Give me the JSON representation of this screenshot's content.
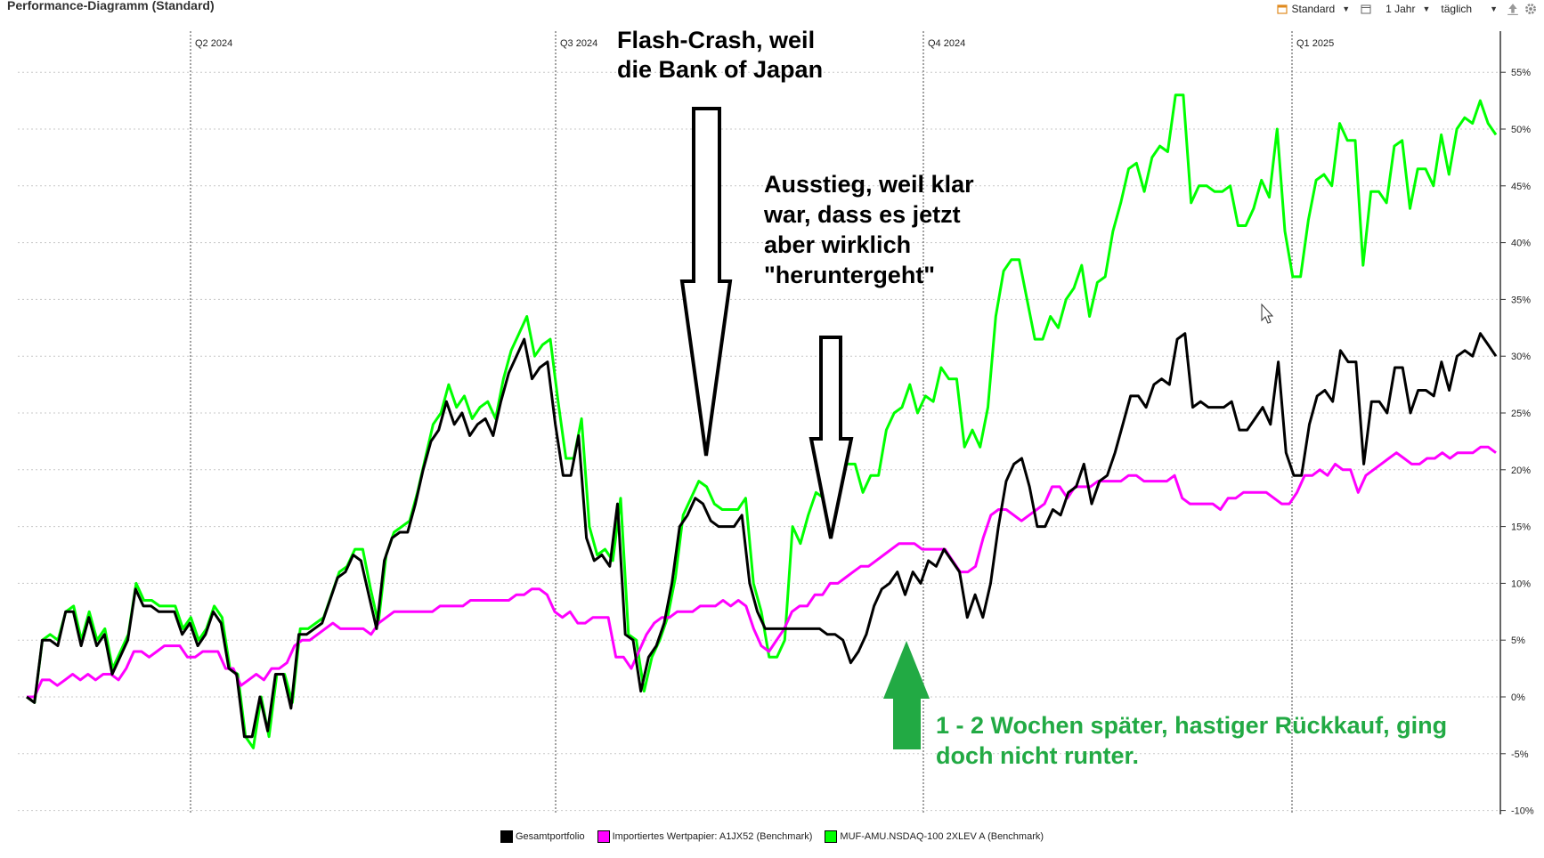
{
  "title": "Performance-Diagramm (Standard)",
  "toolbar": {
    "view_label": "Standard",
    "period_label": "1 Jahr",
    "interval_label": "täglich",
    "calendar_icon": "calendar-icon",
    "export_icon": "upload-icon",
    "settings_icon": "gear-icon"
  },
  "colors": {
    "portfolio": "#000000",
    "benchmark_import": "#ff00ff",
    "benchmark_nasdaq": "#00ff00",
    "annotation_green": "#22aa44",
    "grid": "#c8c8c8"
  },
  "annotations": {
    "flash_crash_line1": "Flash-Crash, weil",
    "flash_crash_line2": "die Bank of Japan",
    "exit_line1": "Ausstieg, weil klar",
    "exit_line2": "war, dass es jetzt",
    "exit_line3": "aber wirklich",
    "exit_line4": "\"heruntergeht\"",
    "rebuy_line1": "1 - 2 Wochen später, hastiger Rückkauf, ging",
    "rebuy_line2": "doch nicht runter."
  },
  "chart_data": {
    "type": "line",
    "quarter_labels": [
      "Q2 2024",
      "Q3 2024",
      "Q4 2024",
      "Q1 2025"
    ],
    "y_ticks": [
      "55%",
      "50%",
      "45%",
      "40%",
      "35%",
      "30%",
      "25%",
      "20%",
      "15%",
      "10%",
      "5%",
      "0%",
      "-5%",
      "-10%"
    ],
    "ylim": [
      -10,
      57
    ],
    "legend_position": "bottom",
    "grid": true,
    "series": [
      {
        "name": "Gesamtportfolio",
        "values": [
          0,
          -0.5,
          5,
          5,
          4.5,
          7.5,
          7.5,
          4.5,
          7,
          4.5,
          5.5,
          2,
          3.5,
          5,
          9.5,
          8,
          8,
          7.5,
          7.5,
          7.5,
          5.5,
          6.5,
          4.5,
          5.5,
          7.5,
          6.5,
          2.5,
          2,
          -3.5,
          -3.5,
          0,
          -3,
          2,
          2,
          -1,
          5.5,
          5.5,
          6,
          6.5,
          8.5,
          10.5,
          11,
          12.5,
          12,
          9,
          6,
          12,
          14,
          14.5,
          14.5,
          17,
          20,
          22.5,
          23.5,
          26,
          24,
          25,
          23,
          24,
          24.5,
          23,
          26,
          28.5,
          30,
          31.5,
          28,
          29,
          29.5,
          24,
          19.5,
          19.5,
          23,
          14,
          12,
          12.5,
          11.5,
          17,
          5.5,
          5,
          0.5,
          3.5,
          4.5,
          6.5,
          10,
          15,
          16,
          17.5,
          17,
          15.5,
          15,
          15,
          15,
          16,
          10,
          7.5,
          6,
          6,
          6,
          6,
          6,
          6,
          6,
          6,
          5.5,
          5.5,
          5,
          3,
          4,
          5.5,
          8,
          9.5,
          10,
          11,
          9,
          11,
          10,
          12,
          11.5,
          13,
          12,
          11,
          7,
          9,
          7,
          10,
          15,
          19,
          20.5,
          21,
          18.5,
          15,
          15,
          16.5,
          16,
          18,
          18.5,
          20.5,
          17,
          19,
          19.5,
          21.5,
          24,
          26.5,
          26.5,
          25.5,
          27.5,
          28,
          27.5,
          31.5,
          32,
          25.5,
          26,
          25.5,
          25.5,
          25.5,
          26,
          23.5,
          23.5,
          24.5,
          25.5,
          24,
          29.5,
          21.5,
          19.5,
          19.5,
          24,
          26.5,
          27,
          26,
          30.5,
          29.5,
          29.5,
          20.5,
          26,
          26,
          25,
          29,
          29,
          25,
          27,
          27,
          26.5,
          29.5,
          27,
          30,
          30.5,
          30,
          32,
          31,
          30
        ]
      },
      {
        "name": "Importiertes Wertpapier: A1JX52 (Benchmark)",
        "values": [
          0,
          0,
          1.5,
          1.5,
          1,
          1.5,
          2,
          1.5,
          2,
          1.5,
          2,
          2,
          1.5,
          2.5,
          4,
          4,
          3.5,
          4,
          4.5,
          4.5,
          4.5,
          3.5,
          3.5,
          4,
          4,
          4,
          2.5,
          2.5,
          1,
          1.5,
          2,
          1.5,
          2.5,
          2.5,
          3,
          4.5,
          5,
          5,
          5.5,
          6,
          6.5,
          6,
          6,
          6,
          6,
          5.5,
          6.5,
          7,
          7.5,
          7.5,
          7.5,
          7.5,
          7.5,
          7.5,
          8,
          8,
          8,
          8,
          8.5,
          8.5,
          8.5,
          8.5,
          8.5,
          8.5,
          9,
          9,
          9.5,
          9.5,
          9,
          7.5,
          7,
          7.5,
          6.5,
          6.5,
          7,
          7,
          7,
          3.5,
          3.5,
          2.5,
          4,
          5.5,
          6.5,
          7,
          7,
          7.5,
          7.5,
          7.5,
          8,
          8,
          8,
          8.5,
          8,
          8.5,
          8,
          6,
          4.5,
          4,
          5,
          6,
          7.5,
          8,
          8,
          9,
          9,
          10,
          10,
          10.5,
          11,
          11.5,
          11.5,
          12,
          12.5,
          13,
          13.5,
          13.5,
          13.5,
          13,
          13,
          13,
          13,
          12,
          11,
          11,
          11.5,
          14,
          16,
          16.5,
          16.5,
          16,
          15.5,
          16,
          16.5,
          17,
          18.5,
          18.5,
          17.5,
          18.5,
          18.5,
          18.5,
          19,
          19,
          19,
          19,
          19.5,
          19.5,
          19,
          19,
          19,
          19,
          19.5,
          17.5,
          17,
          17,
          17,
          17,
          16.5,
          17.5,
          17.5,
          18,
          18,
          18,
          18,
          17.5,
          17,
          17,
          18,
          19.5,
          19.5,
          20,
          19.5,
          20.5,
          20,
          20,
          18,
          19.5,
          20,
          20.5,
          21,
          21.5,
          21,
          20.5,
          20.5,
          21,
          21,
          21.5,
          21,
          21.5,
          21.5,
          21.5,
          22,
          22,
          21.5
        ]
      },
      {
        "name": "MUF-AMU.NSDAQ-100 2XLEV A (Benchmark)",
        "values": [
          0,
          -0.5,
          5,
          5.5,
          5,
          7.5,
          8,
          5,
          7.5,
          5,
          6,
          2.5,
          4,
          5.5,
          10,
          8.5,
          8.5,
          8,
          8,
          8,
          6,
          7,
          5,
          6,
          8,
          7,
          2.5,
          2,
          -3.5,
          -4.5,
          0,
          -3.5,
          2,
          2,
          -0.5,
          6,
          6,
          6.5,
          7,
          9,
          11,
          11.5,
          13,
          13,
          9.5,
          6.5,
          12.5,
          14.5,
          15,
          15.5,
          18,
          21,
          24,
          25,
          27.5,
          25.5,
          26.5,
          24.5,
          25.5,
          26,
          24.5,
          28,
          30.5,
          32,
          33.5,
          30,
          31,
          31.5,
          26,
          21,
          21,
          24.5,
          15,
          12.5,
          13,
          12,
          17.5,
          5.5,
          5,
          0.5,
          3.5,
          5,
          7,
          10.5,
          16,
          17.5,
          19,
          18.5,
          17,
          16.5,
          16.5,
          16.5,
          17.5,
          10,
          7.5,
          3.5,
          3.5,
          5,
          15,
          13.5,
          16,
          18,
          17.5,
          19.5,
          20,
          20.5,
          20.5,
          18,
          19.5,
          19.5,
          23.5,
          25,
          25.5,
          27.5,
          25,
          26.5,
          26,
          29,
          28,
          28,
          22,
          23.5,
          22,
          25.5,
          33.5,
          37.5,
          38.5,
          38.5,
          35,
          31.5,
          31.5,
          33.5,
          32.5,
          35,
          36,
          38,
          33.5,
          36.5,
          37,
          41,
          43.5,
          46.5,
          47,
          44.5,
          47.5,
          48.5,
          48,
          53,
          53,
          43.5,
          45,
          45,
          44.5,
          44.5,
          45,
          41.5,
          41.5,
          43,
          45.5,
          44,
          50,
          41,
          37,
          37,
          42,
          45.5,
          46,
          45,
          50.5,
          49,
          49,
          38,
          44.5,
          44.5,
          43.5,
          48.5,
          49,
          43,
          46.5,
          46.5,
          45,
          49.5,
          46,
          50,
          51,
          50.5,
          52.5,
          50.5,
          49.5
        ]
      }
    ]
  },
  "legend": {
    "item1": "Gesamtportfolio",
    "item2": "Importiertes Wertpapier: A1JX52 (Benchmark)",
    "item3": "MUF-AMU.NSDAQ-100 2XLEV A (Benchmark)"
  }
}
